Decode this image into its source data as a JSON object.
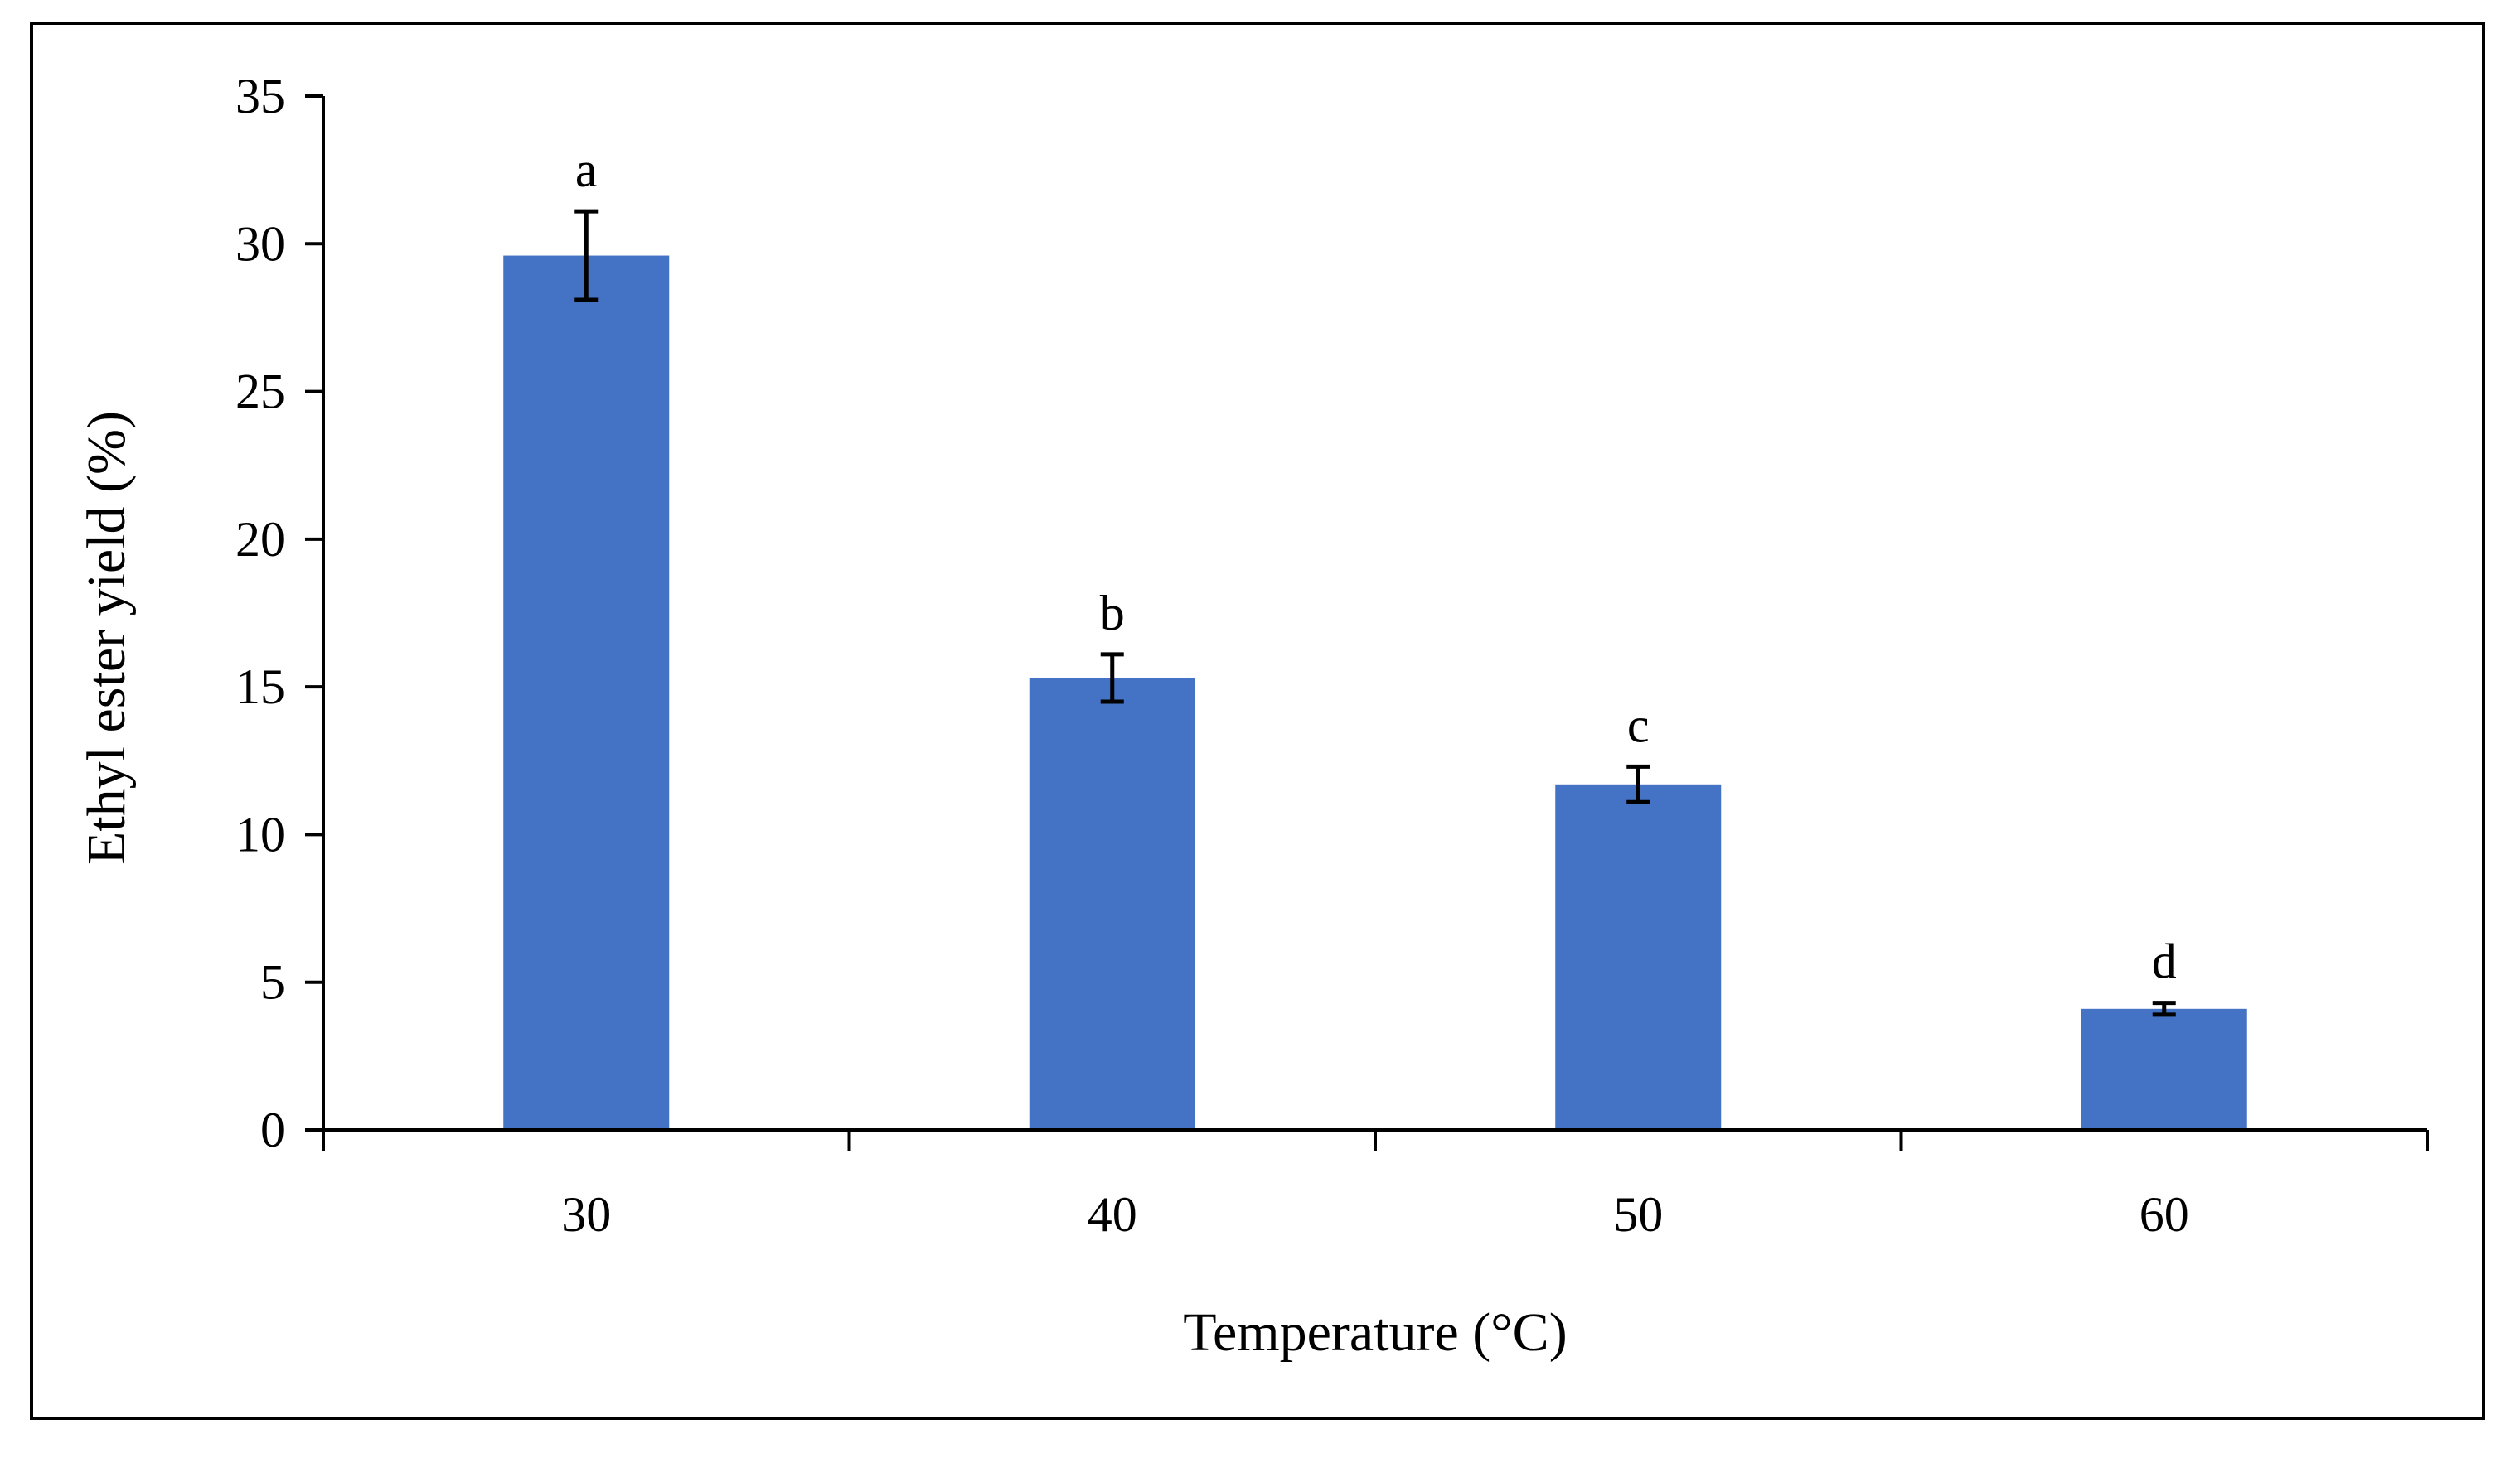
{
  "chart_data": {
    "type": "bar",
    "title": "",
    "xlabel": "Temperature (°C)",
    "ylabel": "Ethyl ester yield (%)",
    "categories": [
      "30",
      "40",
      "50",
      "60"
    ],
    "values": [
      29.6,
      15.3,
      11.7,
      4.1
    ],
    "errors": [
      1.5,
      0.8,
      0.6,
      0.2
    ],
    "significance_letters": [
      "a",
      "b",
      "c",
      "d"
    ],
    "ylim": [
      0,
      35
    ],
    "yticks": [
      0,
      5,
      10,
      15,
      20,
      25,
      30,
      35
    ],
    "ytick_labels": [
      "0",
      "5",
      "10",
      "15",
      "20",
      "25",
      "30",
      "35"
    ],
    "grid": false,
    "bar_color": "#4472C4",
    "error_bar_color": "#000000"
  }
}
